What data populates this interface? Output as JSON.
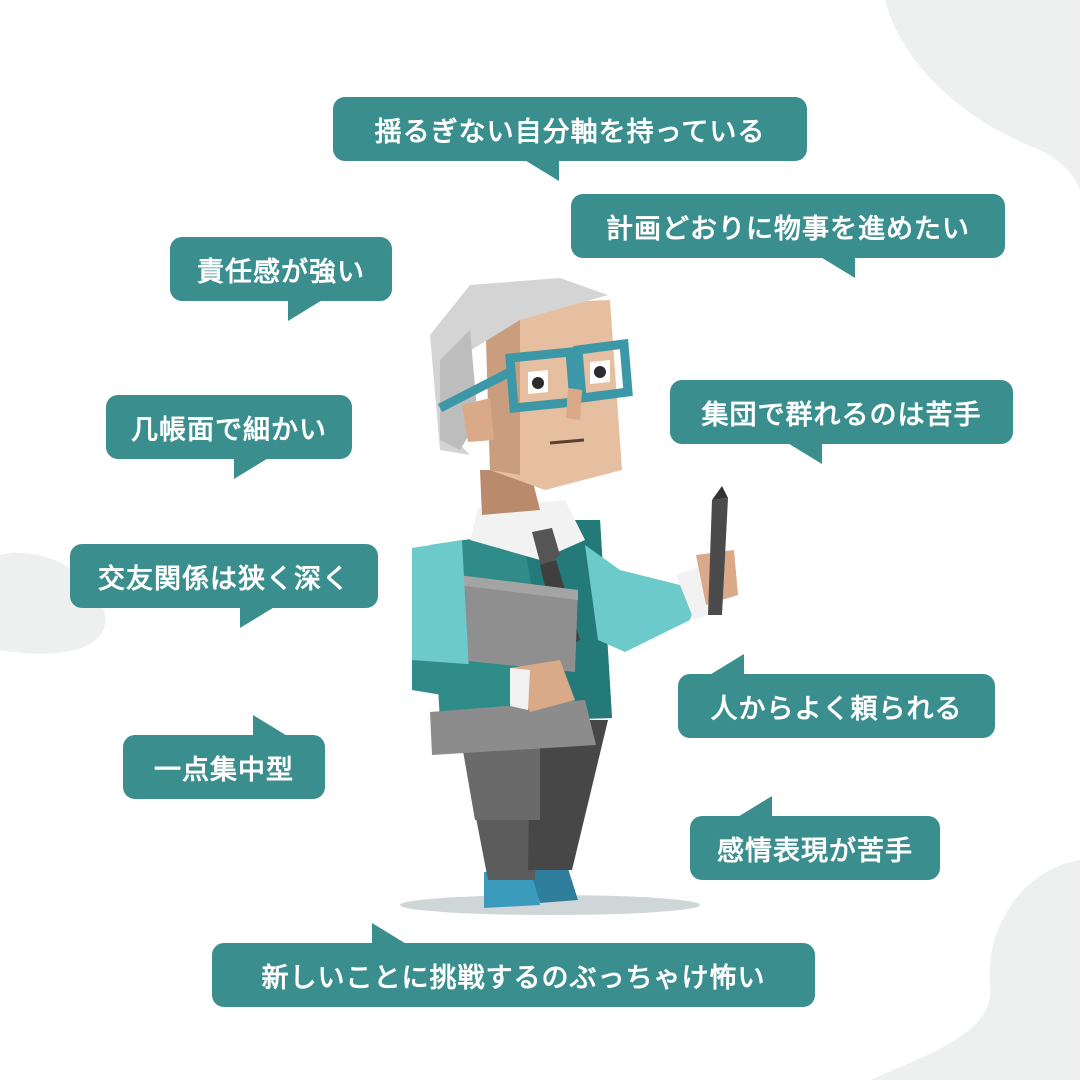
{
  "bubbles": {
    "axis": "揺るぎない自分軸を持っている",
    "plan": "計画どおりに物事を進めたい",
    "responsibility": "責任感が強い",
    "meticulous": "几帳面で細かい",
    "group": "集団で群れるのは苦手",
    "friends": "交友関係は狭く深く",
    "relied": "人からよく頼られる",
    "focus": "一点集中型",
    "emotion": "感情表現が苦手",
    "challenge": "新しいことに挑戦するのぶっちゃけ怖い"
  },
  "colors": {
    "bubble": "#3a8f8e",
    "background_blob": "#eef0ef",
    "sweater": "#2f8c89",
    "sleeve": "#6ccaca",
    "glasses": "#3c98a6",
    "skin": "#e6bfa0",
    "hair": "#d4d4d4",
    "trousers": "#5d5d5d",
    "shoes": "#3a9bbd"
  },
  "illustration": {
    "character": "elderly-man-with-glasses-holding-pencil-and-clipboard"
  }
}
